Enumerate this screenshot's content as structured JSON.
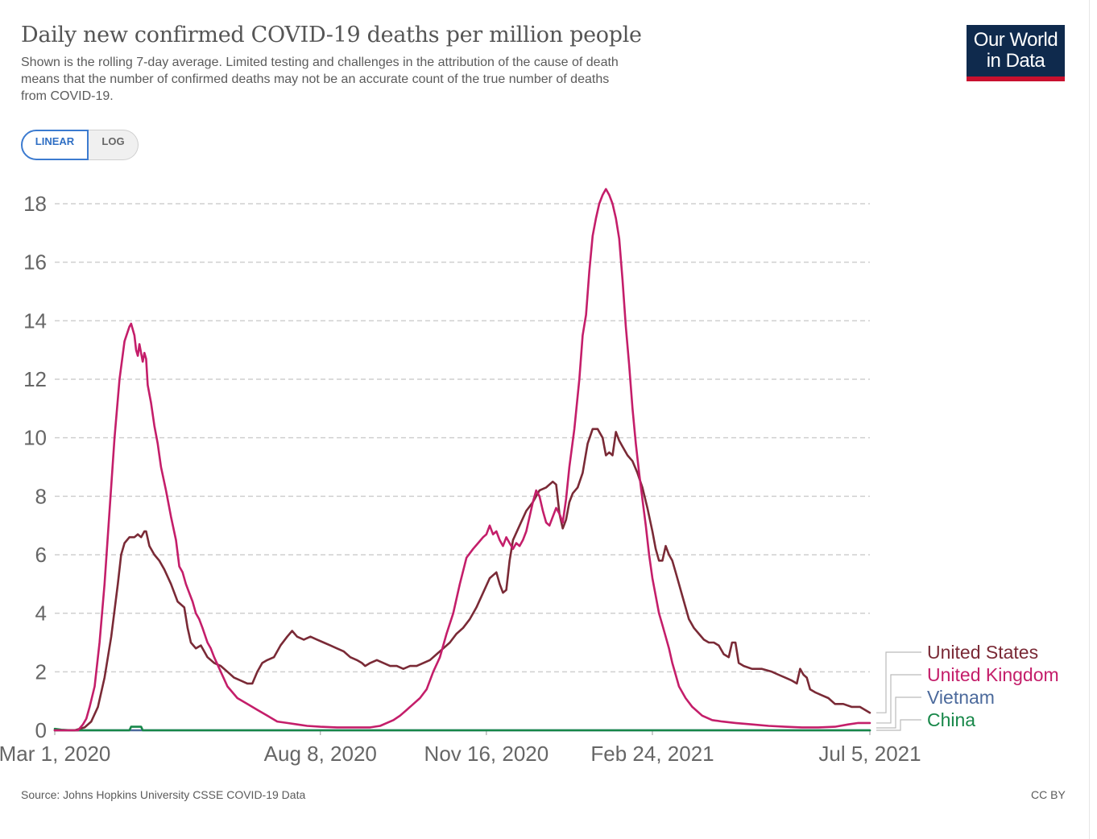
{
  "header": {
    "title": "Daily new confirmed COVID-19 deaths per million people",
    "subtitle": "Shown is the rolling 7-day average. Limited testing and challenges in the attribution of the cause of death means that the number of confirmed deaths may not be an accurate count of the true number of deaths from COVID-19."
  },
  "logo": {
    "line1": "Our World",
    "line2": "in Data",
    "bg": "#0f2a4d",
    "accent": "#c8102e"
  },
  "scale_toggle": {
    "linear_label": "LINEAR",
    "log_label": "LOG",
    "selected": "LINEAR"
  },
  "footer": {
    "source": "Source: Johns Hopkins University CSSE COVID-19 Data",
    "license": "CC BY"
  },
  "chart_data": {
    "type": "line",
    "title": "Daily new confirmed COVID-19 deaths per million people",
    "xlabel": "",
    "ylabel": "",
    "x_range_days": [
      0,
      491
    ],
    "ylim": [
      0,
      18
    ],
    "y_ticks": [
      0,
      2,
      4,
      6,
      8,
      10,
      12,
      14,
      16,
      18
    ],
    "x_ticks": [
      {
        "day": 0,
        "label": "Mar 1, 2020"
      },
      {
        "day": 160,
        "label": "Aug 8, 2020"
      },
      {
        "day": 260,
        "label": "Nov 16, 2020"
      },
      {
        "day": 360,
        "label": "Feb 24, 2021"
      },
      {
        "day": 491,
        "label": "Jul 5, 2021"
      }
    ],
    "grid": true,
    "legend": "right-end labels",
    "series": [
      {
        "name": "United States",
        "color": "#7a2a36",
        "points": [
          [
            0,
            0
          ],
          [
            12,
            0
          ],
          [
            18,
            0.1
          ],
          [
            22,
            0.3
          ],
          [
            26,
            0.8
          ],
          [
            30,
            1.8
          ],
          [
            34,
            3.2
          ],
          [
            38,
            5.0
          ],
          [
            40,
            6.0
          ],
          [
            42,
            6.4
          ],
          [
            45,
            6.6
          ],
          [
            48,
            6.6
          ],
          [
            50,
            6.7
          ],
          [
            52,
            6.6
          ],
          [
            54,
            6.8
          ],
          [
            55,
            6.8
          ],
          [
            57,
            6.3
          ],
          [
            60,
            6.0
          ],
          [
            63,
            5.8
          ],
          [
            66,
            5.5
          ],
          [
            70,
            5.0
          ],
          [
            74,
            4.4
          ],
          [
            78,
            4.2
          ],
          [
            80,
            3.5
          ],
          [
            82,
            3.0
          ],
          [
            85,
            2.8
          ],
          [
            88,
            2.9
          ],
          [
            92,
            2.5
          ],
          [
            96,
            2.3
          ],
          [
            100,
            2.2
          ],
          [
            104,
            2.0
          ],
          [
            108,
            1.8
          ],
          [
            112,
            1.7
          ],
          [
            116,
            1.6
          ],
          [
            119,
            1.6
          ],
          [
            122,
            2.0
          ],
          [
            125,
            2.3
          ],
          [
            128,
            2.4
          ],
          [
            132,
            2.5
          ],
          [
            136,
            2.9
          ],
          [
            140,
            3.2
          ],
          [
            143,
            3.4
          ],
          [
            146,
            3.2
          ],
          [
            150,
            3.1
          ],
          [
            154,
            3.2
          ],
          [
            158,
            3.1
          ],
          [
            162,
            3.0
          ],
          [
            166,
            2.9
          ],
          [
            170,
            2.8
          ],
          [
            174,
            2.7
          ],
          [
            178,
            2.5
          ],
          [
            182,
            2.4
          ],
          [
            185,
            2.3
          ],
          [
            187,
            2.2
          ],
          [
            190,
            2.3
          ],
          [
            194,
            2.4
          ],
          [
            198,
            2.3
          ],
          [
            202,
            2.2
          ],
          [
            206,
            2.2
          ],
          [
            210,
            2.1
          ],
          [
            214,
            2.2
          ],
          [
            218,
            2.2
          ],
          [
            222,
            2.3
          ],
          [
            226,
            2.4
          ],
          [
            230,
            2.6
          ],
          [
            234,
            2.8
          ],
          [
            238,
            3.0
          ],
          [
            242,
            3.3
          ],
          [
            246,
            3.5
          ],
          [
            250,
            3.8
          ],
          [
            254,
            4.2
          ],
          [
            258,
            4.7
          ],
          [
            262,
            5.2
          ],
          [
            266,
            5.4
          ],
          [
            268,
            5.0
          ],
          [
            270,
            4.7
          ],
          [
            272,
            4.8
          ],
          [
            274,
            5.8
          ],
          [
            276,
            6.5
          ],
          [
            280,
            7.0
          ],
          [
            284,
            7.5
          ],
          [
            288,
            7.8
          ],
          [
            292,
            8.2
          ],
          [
            296,
            8.3
          ],
          [
            300,
            8.5
          ],
          [
            302,
            8.4
          ],
          [
            304,
            7.4
          ],
          [
            306,
            6.9
          ],
          [
            308,
            7.2
          ],
          [
            310,
            7.8
          ],
          [
            312,
            8.1
          ],
          [
            315,
            8.3
          ],
          [
            318,
            8.8
          ],
          [
            321,
            9.8
          ],
          [
            324,
            10.3
          ],
          [
            327,
            10.3
          ],
          [
            330,
            10.0
          ],
          [
            332,
            9.4
          ],
          [
            334,
            9.5
          ],
          [
            336,
            9.4
          ],
          [
            338,
            10.2
          ],
          [
            340,
            9.9
          ],
          [
            342,
            9.7
          ],
          [
            345,
            9.4
          ],
          [
            348,
            9.2
          ],
          [
            351,
            8.8
          ],
          [
            354,
            8.3
          ],
          [
            357,
            7.6
          ],
          [
            360,
            6.8
          ],
          [
            362,
            6.2
          ],
          [
            364,
            5.8
          ],
          [
            366,
            5.8
          ],
          [
            368,
            6.3
          ],
          [
            370,
            6.0
          ],
          [
            372,
            5.8
          ],
          [
            374,
            5.4
          ],
          [
            376,
            5.0
          ],
          [
            378,
            4.6
          ],
          [
            380,
            4.2
          ],
          [
            382,
            3.8
          ],
          [
            385,
            3.5
          ],
          [
            388,
            3.3
          ],
          [
            391,
            3.1
          ],
          [
            394,
            3.0
          ],
          [
            397,
            3.0
          ],
          [
            400,
            2.9
          ],
          [
            403,
            2.6
          ],
          [
            406,
            2.5
          ],
          [
            408,
            3.0
          ],
          [
            410,
            3.0
          ],
          [
            412,
            2.3
          ],
          [
            415,
            2.2
          ],
          [
            420,
            2.1
          ],
          [
            426,
            2.1
          ],
          [
            432,
            2.0
          ],
          [
            436,
            1.9
          ],
          [
            440,
            1.8
          ],
          [
            444,
            1.7
          ],
          [
            447,
            1.6
          ],
          [
            449,
            2.1
          ],
          [
            451,
            1.9
          ],
          [
            453,
            1.8
          ],
          [
            455,
            1.4
          ],
          [
            458,
            1.3
          ],
          [
            462,
            1.2
          ],
          [
            466,
            1.1
          ],
          [
            470,
            0.9
          ],
          [
            475,
            0.9
          ],
          [
            480,
            0.8
          ],
          [
            485,
            0.8
          ],
          [
            491,
            0.6
          ]
        ]
      },
      {
        "name": "United Kingdom",
        "color": "#c41e6a",
        "points": [
          [
            0,
            0
          ],
          [
            14,
            0
          ],
          [
            17,
            0.2
          ],
          [
            19,
            0.4
          ],
          [
            21,
            0.8
          ],
          [
            24,
            1.5
          ],
          [
            27,
            3.0
          ],
          [
            30,
            5.0
          ],
          [
            33,
            7.5
          ],
          [
            36,
            10.0
          ],
          [
            39,
            12.0
          ],
          [
            42,
            13.3
          ],
          [
            45,
            13.8
          ],
          [
            46,
            13.9
          ],
          [
            48,
            13.5
          ],
          [
            49,
            13.0
          ],
          [
            50,
            12.8
          ],
          [
            51,
            13.2
          ],
          [
            53,
            12.6
          ],
          [
            54,
            12.9
          ],
          [
            55,
            12.7
          ],
          [
            56,
            11.8
          ],
          [
            58,
            11.2
          ],
          [
            60,
            10.4
          ],
          [
            62,
            9.8
          ],
          [
            64,
            9.0
          ],
          [
            67,
            8.2
          ],
          [
            70,
            7.3
          ],
          [
            73,
            6.5
          ],
          [
            75,
            5.6
          ],
          [
            77,
            5.4
          ],
          [
            79,
            5.0
          ],
          [
            81,
            4.7
          ],
          [
            83,
            4.4
          ],
          [
            85,
            4.0
          ],
          [
            87,
            3.8
          ],
          [
            89,
            3.5
          ],
          [
            92,
            3.0
          ],
          [
            94,
            2.8
          ],
          [
            96,
            2.5
          ],
          [
            100,
            2.0
          ],
          [
            104,
            1.5
          ],
          [
            110,
            1.1
          ],
          [
            116,
            0.9
          ],
          [
            122,
            0.7
          ],
          [
            128,
            0.5
          ],
          [
            134,
            0.3
          ],
          [
            140,
            0.25
          ],
          [
            146,
            0.2
          ],
          [
            152,
            0.15
          ],
          [
            160,
            0.12
          ],
          [
            170,
            0.1
          ],
          [
            180,
            0.1
          ],
          [
            190,
            0.1
          ],
          [
            196,
            0.15
          ],
          [
            200,
            0.25
          ],
          [
            204,
            0.35
          ],
          [
            208,
            0.5
          ],
          [
            212,
            0.7
          ],
          [
            216,
            0.9
          ],
          [
            220,
            1.1
          ],
          [
            224,
            1.4
          ],
          [
            228,
            2.0
          ],
          [
            232,
            2.5
          ],
          [
            236,
            3.3
          ],
          [
            240,
            4.0
          ],
          [
            244,
            5.0
          ],
          [
            248,
            5.9
          ],
          [
            252,
            6.2
          ],
          [
            255,
            6.4
          ],
          [
            258,
            6.6
          ],
          [
            260,
            6.7
          ],
          [
            262,
            7.0
          ],
          [
            264,
            6.7
          ],
          [
            266,
            6.8
          ],
          [
            268,
            6.5
          ],
          [
            270,
            6.3
          ],
          [
            272,
            6.6
          ],
          [
            274,
            6.4
          ],
          [
            276,
            6.2
          ],
          [
            278,
            6.4
          ],
          [
            280,
            6.3
          ],
          [
            282,
            6.5
          ],
          [
            284,
            6.8
          ],
          [
            286,
            7.3
          ],
          [
            288,
            7.8
          ],
          [
            290,
            8.2
          ],
          [
            292,
            8.0
          ],
          [
            294,
            7.5
          ],
          [
            296,
            7.1
          ],
          [
            298,
            7.0
          ],
          [
            300,
            7.3
          ],
          [
            302,
            7.6
          ],
          [
            304,
            7.4
          ],
          [
            306,
            7.1
          ],
          [
            308,
            7.9
          ],
          [
            310,
            9.0
          ],
          [
            313,
            10.3
          ],
          [
            316,
            12.0
          ],
          [
            318,
            13.5
          ],
          [
            320,
            14.2
          ],
          [
            322,
            15.7
          ],
          [
            324,
            16.9
          ],
          [
            326,
            17.5
          ],
          [
            328,
            18.0
          ],
          [
            330,
            18.3
          ],
          [
            332,
            18.5
          ],
          [
            334,
            18.3
          ],
          [
            336,
            18.0
          ],
          [
            338,
            17.5
          ],
          [
            340,
            16.8
          ],
          [
            342,
            15.4
          ],
          [
            344,
            13.8
          ],
          [
            346,
            12.5
          ],
          [
            348,
            11.0
          ],
          [
            350,
            9.8
          ],
          [
            352,
            8.8
          ],
          [
            354,
            7.9
          ],
          [
            356,
            7.0
          ],
          [
            358,
            6.0
          ],
          [
            360,
            5.2
          ],
          [
            362,
            4.6
          ],
          [
            364,
            4.0
          ],
          [
            366,
            3.6
          ],
          [
            368,
            3.2
          ],
          [
            370,
            2.8
          ],
          [
            372,
            2.3
          ],
          [
            374,
            1.9
          ],
          [
            376,
            1.5
          ],
          [
            380,
            1.1
          ],
          [
            384,
            0.8
          ],
          [
            390,
            0.5
          ],
          [
            396,
            0.35
          ],
          [
            402,
            0.3
          ],
          [
            410,
            0.25
          ],
          [
            420,
            0.2
          ],
          [
            430,
            0.15
          ],
          [
            440,
            0.12
          ],
          [
            450,
            0.1
          ],
          [
            460,
            0.1
          ],
          [
            470,
            0.12
          ],
          [
            478,
            0.2
          ],
          [
            484,
            0.25
          ],
          [
            491,
            0.25
          ]
        ]
      },
      {
        "name": "Vietnam",
        "color": "#4c6a9c",
        "points": [
          [
            0,
            0
          ],
          [
            491,
            0
          ]
        ]
      },
      {
        "name": "China",
        "color": "#178749",
        "points": [
          [
            0,
            0.05
          ],
          [
            4,
            0.02
          ],
          [
            10,
            0
          ],
          [
            45,
            0
          ],
          [
            46,
            0.12
          ],
          [
            52,
            0.12
          ],
          [
            53,
            0
          ],
          [
            491,
            0
          ]
        ]
      }
    ]
  }
}
